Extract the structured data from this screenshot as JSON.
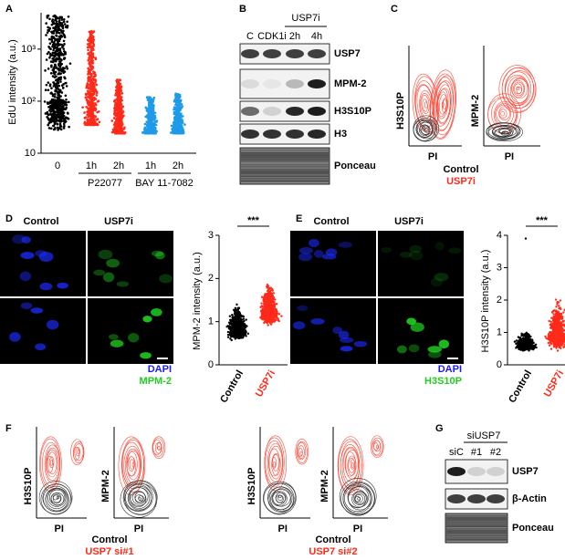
{
  "A": {
    "label": "A",
    "y_label": "EdU intensity (a.u.)",
    "ylim": [
      10,
      5000
    ],
    "log_scale": true,
    "yticks": [
      10,
      {
        "value": 100,
        "label": "10²"
      },
      {
        "value": 1000,
        "label": "10³"
      }
    ],
    "categories": [
      "0",
      "1h",
      "2h",
      "1h",
      "2h"
    ],
    "groups": [
      "P22077",
      "BAY 11-7082"
    ],
    "colors": [
      "#000000",
      "#ff2a1a",
      "#ff2a1a",
      "#1f9be8",
      "#1f9be8"
    ]
  },
  "B": {
    "label": "B",
    "lanes": [
      "C",
      "CDK1i",
      "2h",
      "4h"
    ],
    "lane_group": "USP7i",
    "rows": [
      "USP7",
      "MPM-2",
      "H3S10P",
      "H3",
      "Ponceau"
    ]
  },
  "C": {
    "label": "C",
    "plots": [
      {
        "y_label": "H3S10P",
        "x_label": "PI"
      },
      {
        "y_label": "MPM-2",
        "x_label": "PI"
      }
    ],
    "legend": [
      {
        "name": "Control",
        "color": "#000000"
      },
      {
        "name": "USP7i",
        "color": "#ff2a1a"
      }
    ]
  },
  "D": {
    "label": "D",
    "columns": [
      "Control",
      "USP7i"
    ],
    "stains": [
      {
        "name": "DAPI",
        "color": "#1a1aff"
      },
      {
        "name": "MPM-2",
        "color": "#22cc22"
      }
    ],
    "y_label": "MPM-2 intensity (a.u.)",
    "ylim": [
      0,
      3
    ],
    "yticks": [
      0,
      1,
      2,
      3
    ],
    "categories": [
      "Control",
      "USP7i"
    ],
    "category_colors": [
      "#000000",
      "#ff2a1a"
    ],
    "significance": "***"
  },
  "E": {
    "label": "E",
    "columns": [
      "Control",
      "USP7i"
    ],
    "stains": [
      {
        "name": "DAPI",
        "color": "#1a1aff"
      },
      {
        "name": "H3S10P",
        "color": "#22cc22"
      }
    ],
    "y_label": "H3S10P intensity (a.u.)",
    "ylim": [
      0,
      4
    ],
    "yticks": [
      0,
      1,
      2,
      3,
      4
    ],
    "categories": [
      "Control",
      "USP7i"
    ],
    "category_colors": [
      "#000000",
      "#ff2a1a"
    ],
    "significance": "***"
  },
  "F": {
    "label": "F",
    "plots": [
      {
        "y_label": "H3S10P",
        "x_label": "PI"
      },
      {
        "y_label": "MPM-2",
        "x_label": "PI"
      },
      {
        "y_label": "H3S10P",
        "x_label": "PI"
      },
      {
        "y_label": "MPM-2",
        "x_label": "PI"
      }
    ],
    "legends": [
      [
        {
          "name": "Control",
          "color": "#000000"
        },
        {
          "name": "USP7 si#1",
          "color": "#ff2a1a"
        }
      ],
      [
        {
          "name": "Control",
          "color": "#000000"
        },
        {
          "name": "USP7 si#2",
          "color": "#ff2a1a"
        }
      ]
    ]
  },
  "G": {
    "label": "G",
    "lane_group": "siUSP7",
    "lanes": [
      "siC",
      "#1",
      "#2"
    ],
    "rows": [
      "USP7",
      "β-Actin",
      "Ponceau"
    ]
  }
}
